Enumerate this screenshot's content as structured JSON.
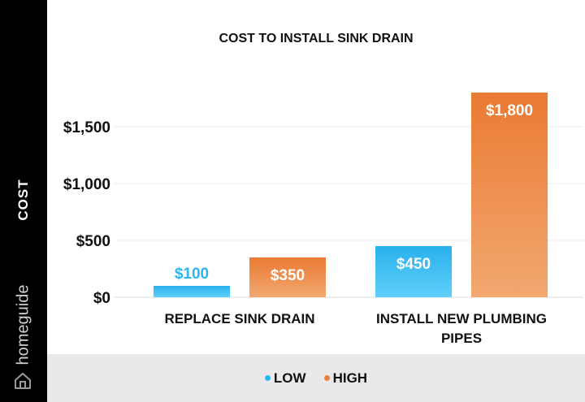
{
  "brand": {
    "name": "homeguide"
  },
  "colors": {
    "low": "#29b6f0",
    "high": "#ed7f3a",
    "grid": "#ececec",
    "text": "#111111"
  },
  "chart_data": {
    "type": "bar",
    "title": "COST TO INSTALL SINK DRAIN",
    "ylabel": "COST",
    "xlabel": "",
    "ylim": [
      0,
      1800
    ],
    "yticks": [
      0,
      500,
      1000,
      1500
    ],
    "ytick_labels": [
      "$0",
      "$500",
      "$1,000",
      "$1,500"
    ],
    "grid": true,
    "legend_position": "bottom",
    "categories": [
      "REPLACE SINK DRAIN",
      "INSTALL NEW PLUMBING PIPES"
    ],
    "series": [
      {
        "name": "LOW",
        "values": [
          100,
          450
        ],
        "labels": [
          "$100",
          "$450"
        ]
      },
      {
        "name": "HIGH",
        "values": [
          350,
          1800
        ],
        "labels": [
          "$350",
          "$1,800"
        ]
      }
    ]
  }
}
